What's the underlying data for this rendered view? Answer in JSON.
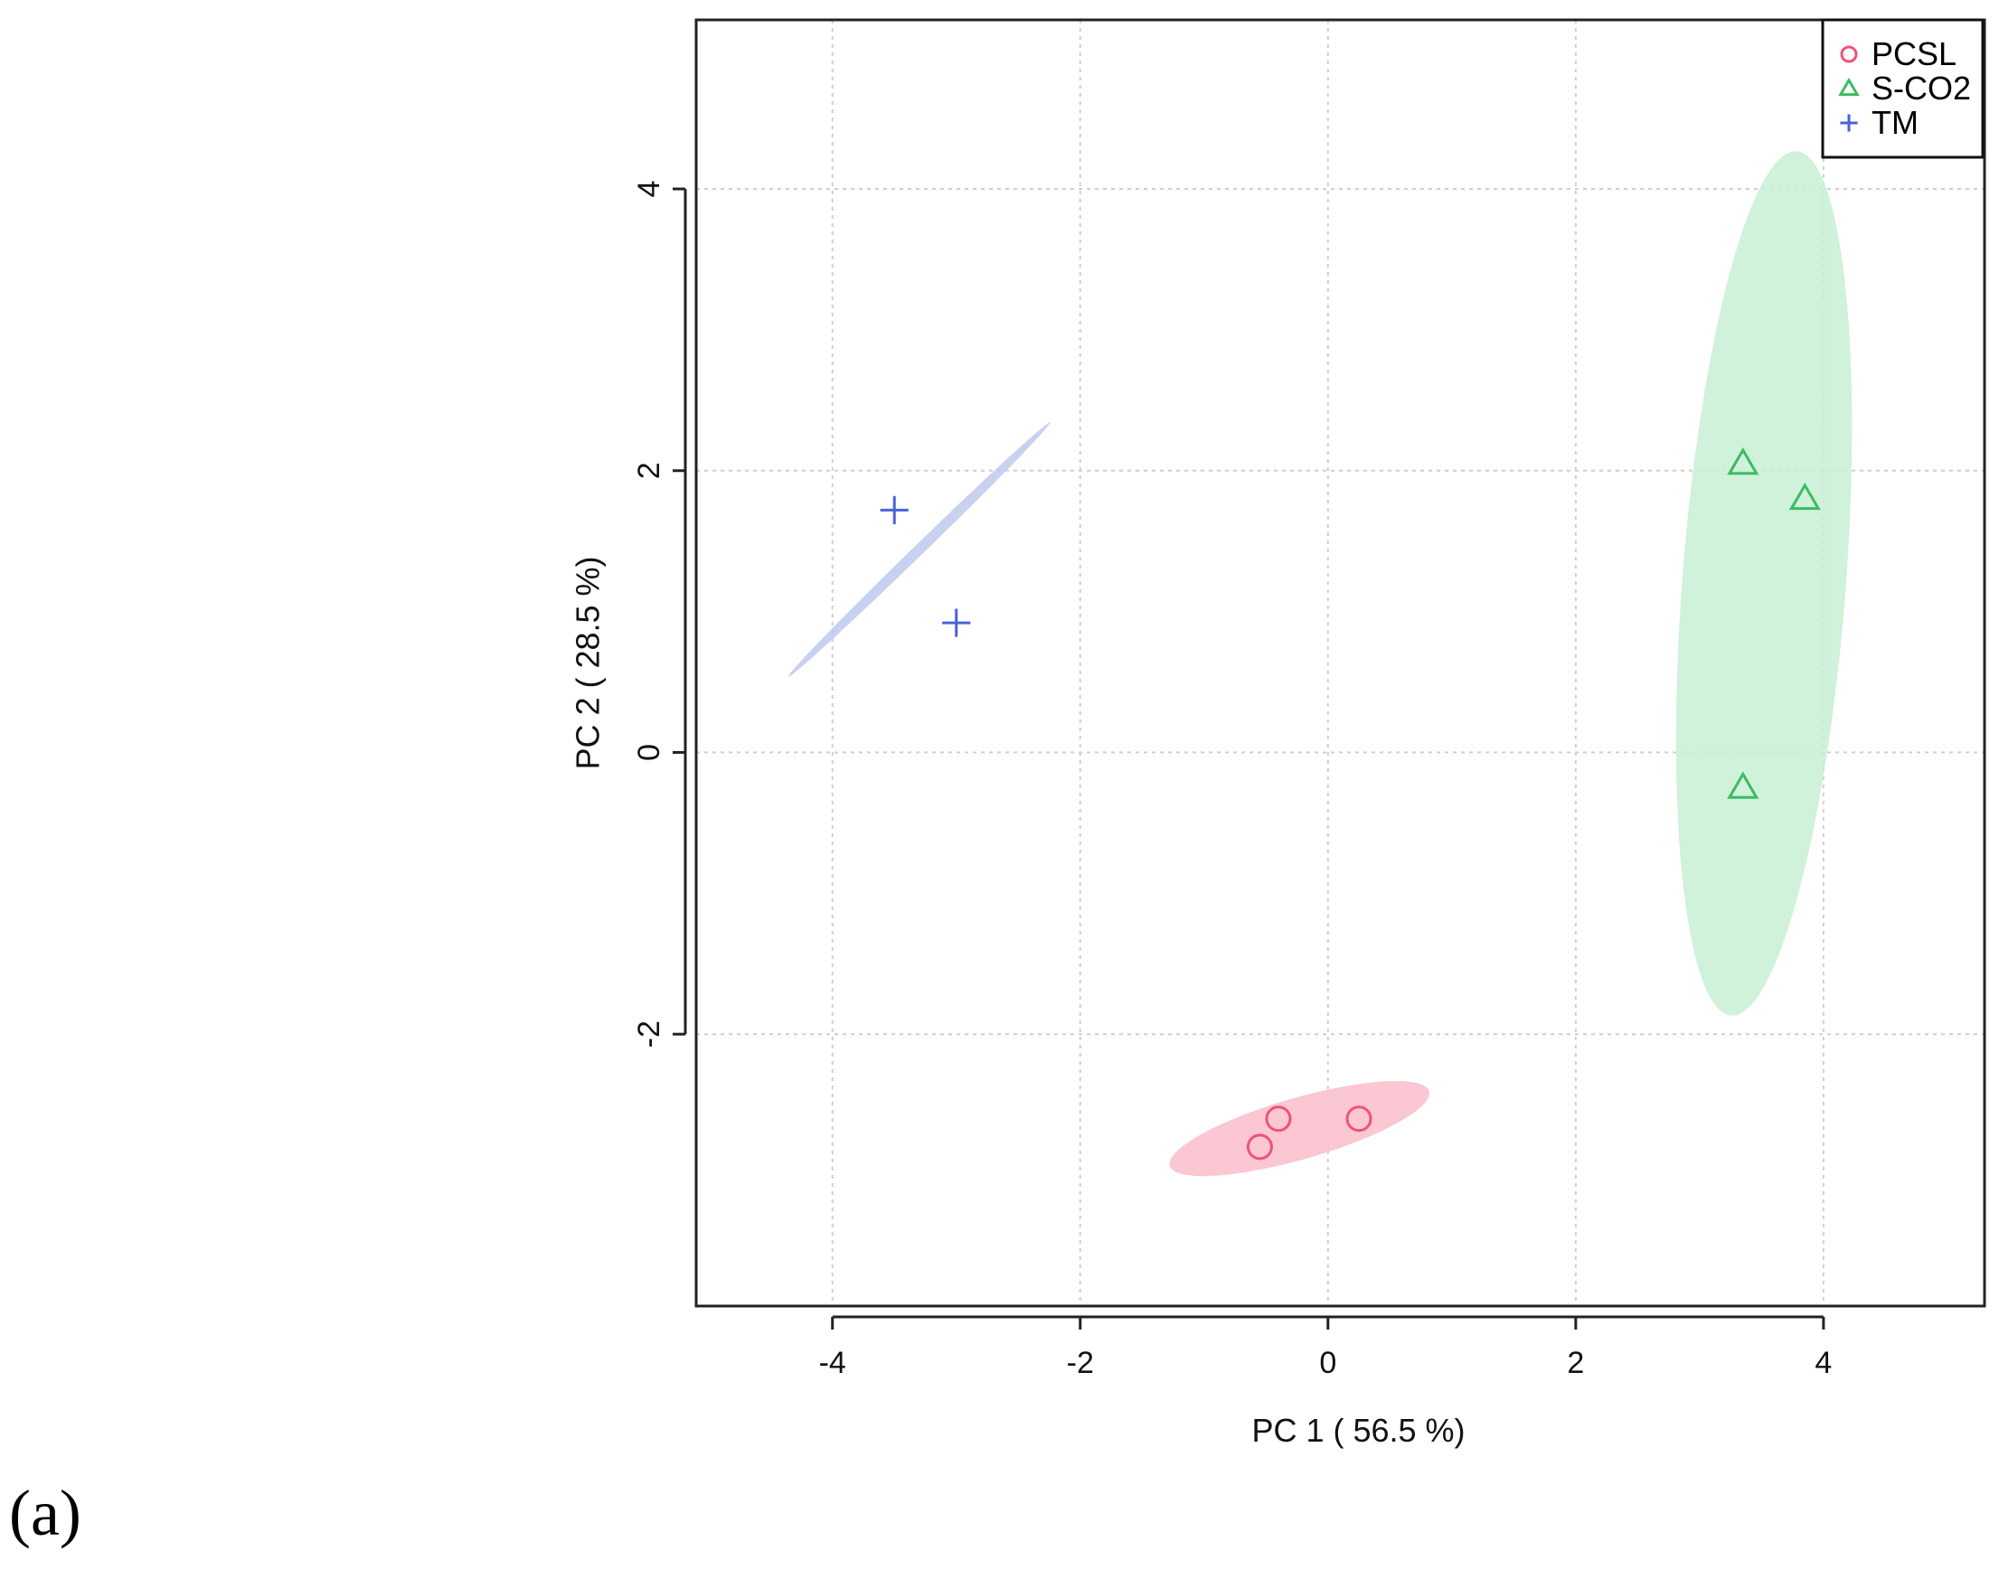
{
  "chart_data": {
    "type": "scatter",
    "xlabel": "PC 1 ( 56.5 %)",
    "ylabel": "PC 2 ( 28.5 %)",
    "xlim": [
      -5.1,
      5.3
    ],
    "ylim": [
      -3.93,
      5.2
    ],
    "xticks": [
      "-4",
      "-2",
      "0",
      "2",
      "4"
    ],
    "yticks": [
      "-2",
      "0",
      "2",
      "4"
    ],
    "xtick_values": [
      -4,
      -2,
      0,
      2,
      4
    ],
    "ytick_values": [
      -2,
      0,
      2,
      4
    ],
    "grid": true,
    "legend_position": "top-right",
    "series": [
      {
        "name": "PCSL",
        "marker": "circle",
        "color": "#F0527A",
        "ellipse_color": "#F9BDCA",
        "points": [
          [
            -0.4,
            -2.6
          ],
          [
            0.25,
            -2.6
          ],
          [
            -0.55,
            -2.8
          ]
        ],
        "ellipse": {
          "cx": -0.23,
          "cy": -2.67,
          "rx": 1.08,
          "ry": 0.22,
          "angle_deg": 14
        }
      },
      {
        "name": "S-CO2",
        "marker": "triangle",
        "color": "#3DBB63",
        "ellipse_color": "#C8EED3",
        "points": [
          [
            3.35,
            2.05
          ],
          [
            3.85,
            1.8
          ],
          [
            3.35,
            -0.25
          ]
        ],
        "ellipse": {
          "cx": 3.52,
          "cy": 1.2,
          "rx": 0.66,
          "ry": 3.08,
          "angle_deg": -5
        }
      },
      {
        "name": "TM",
        "marker": "plus",
        "color": "#4A63D8",
        "ellipse_color": "#BFC9EE",
        "points": [
          [
            -3.5,
            1.72
          ],
          [
            -3.0,
            0.92
          ]
        ],
        "ellipse": {
          "cx": -3.3,
          "cy": 1.44,
          "rx": 1.39,
          "ry": 0.04,
          "angle_deg": 40.5
        }
      }
    ]
  },
  "panel_label": "(a)"
}
